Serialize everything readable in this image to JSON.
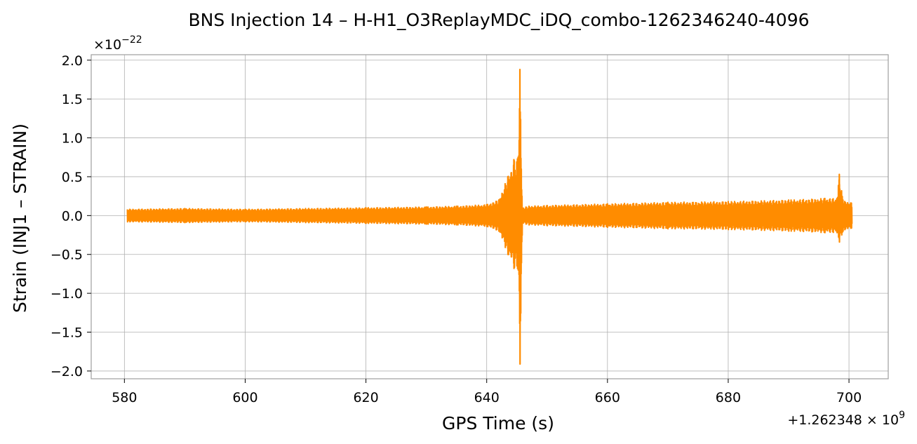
{
  "chart_data": {
    "type": "line",
    "title": "BNS Injection 14 – H-H1_O3ReplayMDC_iDQ_combo-1262346240-4096",
    "xlabel": "GPS Time (s)",
    "ylabel": "Strain (INJ1 – STRAIN)",
    "y_scale_label": "×10",
    "y_scale_exp": "−22",
    "x_offset_label": "+1.262348 × 10",
    "x_offset_exp": "9",
    "xlim": [
      574.5,
      706.5
    ],
    "ylim": [
      -2.1,
      2.07
    ],
    "xticks": [
      580,
      600,
      620,
      640,
      660,
      680,
      700
    ],
    "xtick_labels": [
      "580",
      "600",
      "620",
      "640",
      "660",
      "680",
      "700"
    ],
    "yticks": [
      -2.0,
      -1.5,
      -1.0,
      -0.5,
      0.0,
      0.5,
      1.0,
      1.5,
      2.0
    ],
    "ytick_labels": [
      "−2.0",
      "−1.5",
      "−1.0",
      "−0.5",
      "0.0",
      "0.5",
      "1.0",
      "1.5",
      "2.0"
    ],
    "grid": true,
    "color": "#ff8c00",
    "series": [
      {
        "envelope": {
          "x": [
            580.5,
            590,
            600,
            610,
            620,
            630,
            635,
            640,
            642,
            643.5,
            644.5,
            645.2,
            645.5,
            645.9,
            647,
            650,
            660,
            670,
            680,
            690,
            696,
            698,
            698.4,
            699,
            700.4
          ],
          "upper": [
            0.08,
            0.09,
            0.08,
            0.09,
            0.1,
            0.11,
            0.12,
            0.14,
            0.2,
            0.5,
            0.72,
            0.75,
            1.88,
            0.1,
            0.12,
            0.13,
            0.15,
            0.17,
            0.18,
            0.2,
            0.22,
            0.22,
            0.53,
            0.2,
            0.16
          ],
          "lower": [
            -0.08,
            -0.09,
            -0.08,
            -0.09,
            -0.1,
            -0.11,
            -0.12,
            -0.14,
            -0.2,
            -0.5,
            -0.68,
            -0.7,
            -1.91,
            -0.1,
            -0.12,
            -0.13,
            -0.15,
            -0.17,
            -0.18,
            -0.2,
            -0.22,
            -0.22,
            -0.34,
            -0.2,
            -0.16
          ]
        }
      }
    ]
  }
}
